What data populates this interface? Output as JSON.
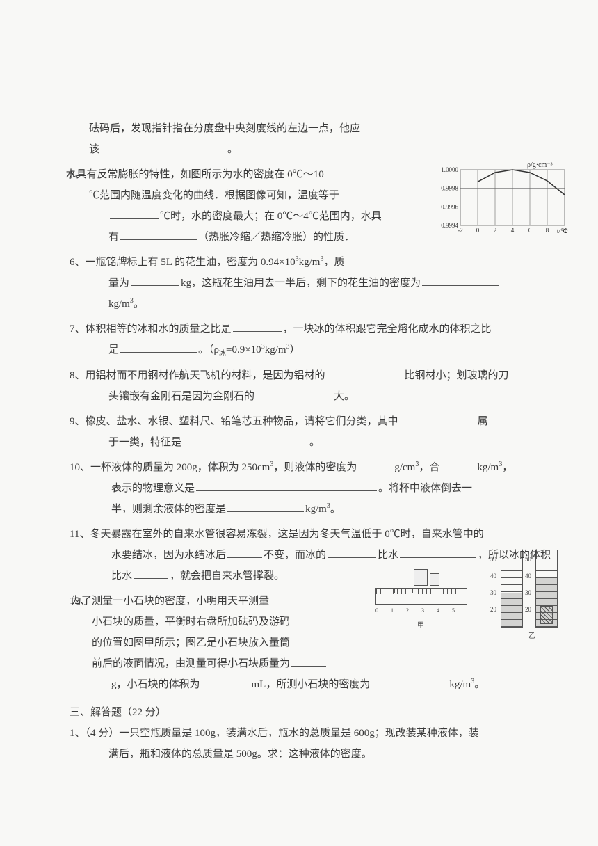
{
  "q4_tail": {
    "line1": "砝码后，发现指针指在分度盘中央刻度线的左边一点，他应",
    "line2_pre": "该",
    "line2_post": "。"
  },
  "q5": {
    "num": "5、",
    "l1": "水具有反常膨胀的特性，如图所示为水的密度在 0℃～10",
    "l2": "℃范围内随温度变化的曲线．根据图像可知，温度等于",
    "l3_pre": "",
    "l3_mid": "℃时，水的密度最大；在 0℃～4℃范围内，水具",
    "l4_pre": "有",
    "l4_post": "（热胀冷缩／热缩冷胀）的性质．"
  },
  "chart": {
    "y_label": "ρ/g·cm⁻³",
    "y_ticks": [
      "1.0000",
      "0.9998",
      "0.9996",
      "0.9994"
    ],
    "x_ticks": [
      "-2",
      "0",
      "2",
      "4",
      "6",
      "8",
      "10"
    ],
    "x_label": "t/℃",
    "xlim": [
      -2,
      10
    ],
    "ylim": [
      0.9994,
      1.0
    ],
    "grid_color": "#666",
    "background_color": "#f8f8f6",
    "line_color": "#333",
    "line_width": 1.5,
    "curve_points": [
      {
        "x": 0,
        "y": 0.99987
      },
      {
        "x": 2,
        "y": 0.99997
      },
      {
        "x": 4,
        "y": 1.0
      },
      {
        "x": 6,
        "y": 0.99997
      },
      {
        "x": 8,
        "y": 0.99988
      },
      {
        "x": 10,
        "y": 0.99973
      }
    ],
    "tick_fontsize": 9
  },
  "q6": {
    "num": "6、",
    "l1_a": "一瓶铭牌标上有 5L 的花生油，密度为 0.94×10",
    "l1_exp": "3",
    "l1_b": "kg/m",
    "l1_exp2": "3",
    "l1_c": "，质",
    "l2_a": "量为",
    "l2_b": "kg，这瓶花生油用去一半后，剩下的花生油的密度为",
    "l3_a": "kg/m",
    "l3_exp": "3",
    "l3_b": "。"
  },
  "q7": {
    "num": "7、",
    "l1_a": "体积相等的冰和水的质量之比是",
    "l1_b": "，一块冰的体积跟它完全熔化成水的体积之比",
    "l2_a": "是",
    "l2_b": "。（ρ",
    "l2_sub": "冰",
    "l2_c": "=0.9×10",
    "l2_exp": "3",
    "l2_d": "kg/m",
    "l2_exp2": "3",
    "l2_e": "）"
  },
  "q8": {
    "num": "8、",
    "l1_a": "用铝材而不用钢材作航天飞机的材料，是因为铝材的",
    "l1_b": "比钢材小；划玻璃的刀",
    "l2_a": "头镶嵌有金刚石是因为金刚石的",
    "l2_b": "大。"
  },
  "q9": {
    "num": "9、",
    "l1_a": "橡皮、盐水、水银、塑料尺、铅笔芯五种物品，请将它们分类，其中",
    "l1_b": "属",
    "l2_a": "于一类，特征是",
    "l2_b": "。"
  },
  "q10": {
    "num": "10、",
    "l1_a": "一杯液体的质量为 200g，体积为 250cm",
    "l1_exp": "3",
    "l1_b": "，则液体的密度为",
    "l1_c": "g/cm",
    "l1_exp2": "3",
    "l1_d": "，合",
    "l1_e": "kg/m",
    "l1_exp3": "3",
    "l1_f": "，",
    "l2_a": "表示的物理意义是",
    "l2_b": "。将杯中液体倒去一",
    "l3_a": "半，则剩余液体的密度是",
    "l3_b": "kg/m",
    "l3_exp": "3",
    "l3_c": "。"
  },
  "q11": {
    "num": "11、",
    "l1": "冬天暴露在室外的自来水管很容易冻裂，这是因为冬天气温低于 0℃时，自来水管中的",
    "l2_a": "水要结冰，因为水结冰后",
    "l2_b": "不变，而冰的",
    "l2_c": "比水",
    "l2_d": "，所以冰的体积",
    "l3_a": "比水",
    "l3_b": "，就会把自来水管撑裂。"
  },
  "q12": {
    "num": "12、",
    "l1": "为了测量一小石块的密度，小明用天平测量",
    "l2": "小石块的质量，平衡时右盘所加砝码及游码",
    "l3": "的位置如图甲所示；图乙是小石块放入量筒",
    "l4_a": "前后的液面情况，由测量可得小石块质量为",
    "l5_a": "g，小石块的体积为",
    "l5_b": "mL，所测小石块的密度为",
    "l5_c": "kg/m",
    "l5_exp": "3",
    "l5_d": "。",
    "caption_a": "甲",
    "caption_b": "乙",
    "cylinder_ticks": [
      "50",
      "40",
      "30",
      "20"
    ],
    "ruler_ticks": [
      "0",
      "1",
      "2",
      "3",
      "4",
      "5"
    ]
  },
  "section3": {
    "title": "三、解答题（22 分）"
  },
  "q3_1": {
    "num": "1、",
    "l1": "（4 分）一只空瓶质量是 100g，装满水后，瓶水的总质量是 600g；现改装某种液体，装",
    "l2": "满后，瓶和液体的总质量是 500g。求：这种液体的密度。"
  }
}
